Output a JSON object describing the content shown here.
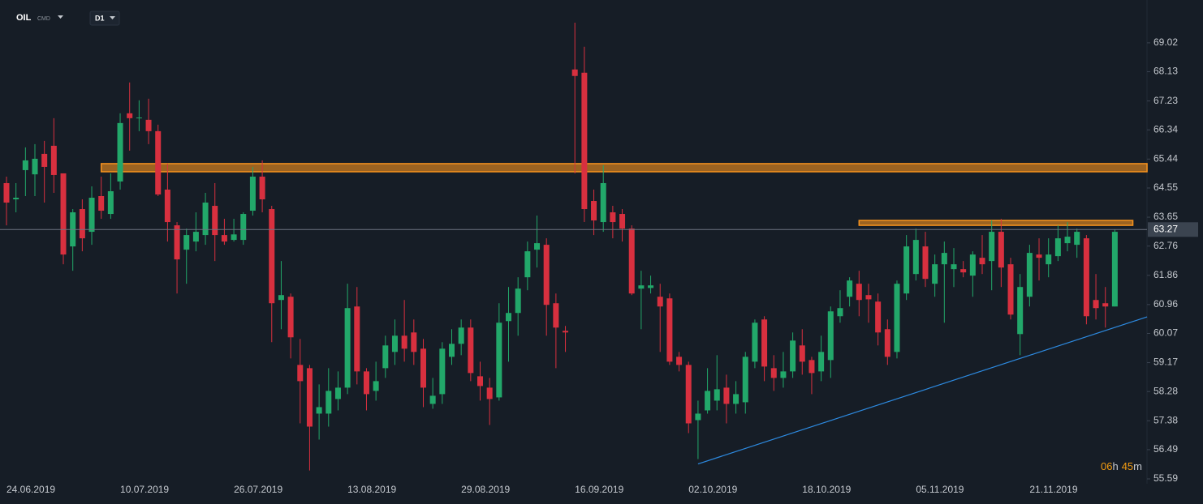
{
  "chart_data": {
    "type": "candlestick",
    "symbol": "OIL",
    "market": "CMD",
    "interval": "D1",
    "countdown_parts": [
      "06",
      "h",
      "45",
      "m"
    ],
    "current_price": 63.27,
    "up_color": "#22a86a",
    "down_color": "#d8303f",
    "ylim": [
      55.44,
      70.34
    ],
    "yticks": [
      55.59,
      56.49,
      57.38,
      58.28,
      59.17,
      60.07,
      60.96,
      61.86,
      62.76,
      63.65,
      64.55,
      65.44,
      66.34,
      67.23,
      68.13,
      69.02
    ],
    "categories": [
      "24.06.2019",
      null,
      null,
      null,
      null,
      null,
      null,
      null,
      null,
      null,
      null,
      null,
      "10.07.2019",
      null,
      null,
      null,
      null,
      null,
      null,
      null,
      null,
      null,
      null,
      null,
      "26.07.2019",
      null,
      null,
      null,
      null,
      null,
      null,
      null,
      null,
      null,
      null,
      null,
      "13.08.2019",
      null,
      null,
      null,
      null,
      null,
      null,
      null,
      null,
      null,
      null,
      null,
      "29.08.2019",
      null,
      null,
      null,
      null,
      null,
      null,
      null,
      null,
      null,
      null,
      null,
      "16.09.2019",
      null,
      null,
      null,
      null,
      null,
      null,
      null,
      null,
      null,
      null,
      null,
      "02.10.2019",
      null,
      null,
      null,
      null,
      null,
      null,
      null,
      null,
      null,
      null,
      null,
      "18.10.2019",
      null,
      null,
      null,
      null,
      null,
      null,
      null,
      null,
      null,
      null,
      null,
      "05.11.2019",
      null,
      null,
      null,
      null,
      null,
      null,
      null,
      null,
      null,
      null,
      null,
      "21.11.2019",
      null,
      null,
      null,
      null,
      null,
      null,
      null,
      null,
      null
    ],
    "open": [
      64.7,
      64.2,
      65.1,
      64.97,
      65.6,
      65.85,
      65.0,
      62.75,
      63.9,
      63.2,
      64.3,
      63.75,
      64.75,
      66.85,
      66.7,
      66.65,
      66.3,
      64.5,
      63.4,
      62.65,
      62.9,
      63.1,
      64.0,
      63.1,
      62.95,
      62.95,
      63.85,
      64.9,
      63.9,
      61.1,
      61.2,
      59.1,
      59.0,
      57.6,
      57.6,
      58.05,
      58.4,
      60.9,
      58.9,
      58.3,
      59.0,
      59.5,
      60.0,
      60.1,
      59.6,
      57.9,
      58.2,
      59.35,
      59.75,
      60.25,
      58.75,
      58.4,
      58.1,
      60.45,
      60.7,
      61.8,
      62.65,
      62.8,
      61.0,
      60.15,
      68.2,
      68.1,
      64.15,
      63.5,
      63.8,
      63.75,
      63.3,
      61.45,
      61.47,
      61.2,
      61.15,
      59.35,
      59.1,
      57.4,
      57.7,
      58.0,
      58.4,
      57.9,
      57.95,
      59.2,
      60.5,
      59.0,
      58.7,
      58.9,
      59.7,
      59.25,
      58.9,
      59.25,
      60.6,
      61.2,
      61.6,
      61.25,
      61.05,
      60.2,
      59.5,
      61.3,
      61.9,
      62.75,
      61.6,
      62.2,
      62.05,
      62.05,
      61.85,
      62.4,
      62.3,
      63.2,
      62.2,
      60.05,
      61.2,
      62.5,
      62.2,
      62.45,
      62.85,
      62.8,
      63.0,
      61.1,
      61.0,
      60.9
    ],
    "high": [
      64.9,
      64.7,
      65.8,
      65.9,
      66.0,
      66.7,
      65.0,
      63.9,
      64.2,
      64.6,
      64.9,
      65.0,
      66.85,
      67.8,
      67.25,
      67.3,
      66.5,
      65.3,
      63.5,
      63.3,
      63.8,
      64.4,
      64.7,
      63.6,
      63.6,
      63.8,
      65.2,
      65.4,
      64.0,
      62.3,
      61.3,
      59.9,
      59.1,
      58.5,
      59.0,
      58.9,
      61.6,
      61.5,
      59.0,
      59.2,
      60.0,
      60.5,
      61.1,
      60.5,
      59.9,
      58.7,
      59.8,
      60.2,
      60.5,
      60.5,
      59.2,
      58.7,
      61.0,
      61.5,
      61.8,
      62.9,
      63.7,
      63.0,
      61.3,
      60.3,
      69.64,
      68.9,
      64.5,
      65.25,
      64.0,
      63.9,
      63.4,
      62.0,
      61.85,
      61.6,
      61.3,
      59.5,
      59.2,
      58.0,
      59.0,
      59.4,
      58.8,
      58.6,
      59.5,
      60.5,
      60.6,
      59.4,
      59.5,
      60.1,
      60.2,
      59.35,
      60.0,
      60.9,
      61.4,
      61.8,
      62.0,
      61.6,
      61.3,
      60.5,
      61.7,
      63.1,
      63.3,
      63.2,
      62.5,
      62.9,
      62.7,
      62.3,
      62.6,
      63.1,
      63.55,
      63.6,
      62.4,
      61.9,
      62.8,
      63.0,
      63.0,
      63.4,
      63.5,
      63.3,
      63.1,
      61.9,
      61.5,
      63.27
    ],
    "low": [
      63.4,
      63.8,
      64.3,
      64.3,
      64.1,
      64.4,
      62.2,
      62.0,
      62.6,
      62.8,
      63.6,
      63.6,
      64.5,
      65.7,
      66.3,
      65.9,
      64.3,
      62.9,
      61.3,
      61.6,
      62.6,
      62.8,
      62.3,
      62.8,
      62.9,
      62.8,
      63.7,
      63.8,
      59.8,
      60.2,
      59.3,
      57.3,
      55.85,
      56.8,
      57.2,
      57.7,
      58.2,
      58.5,
      57.7,
      58.0,
      58.7,
      59.1,
      59.2,
      59.1,
      57.8,
      57.75,
      57.9,
      59.1,
      59.4,
      58.6,
      58.0,
      57.25,
      58.0,
      59.2,
      60.0,
      61.4,
      62.1,
      60.0,
      59.0,
      59.5,
      65.0,
      63.5,
      63.1,
      63.2,
      63.0,
      62.9,
      61.25,
      60.2,
      61.3,
      59.5,
      59.1,
      58.9,
      57.0,
      56.2,
      57.6,
      57.7,
      57.3,
      57.6,
      57.6,
      59.0,
      58.6,
      58.3,
      58.4,
      58.7,
      58.8,
      58.2,
      58.6,
      58.7,
      60.4,
      60.9,
      60.6,
      60.4,
      59.7,
      59.1,
      59.3,
      61.1,
      61.7,
      61.5,
      61.2,
      60.4,
      61.5,
      61.8,
      61.2,
      61.9,
      61.4,
      61.5,
      60.5,
      59.4,
      60.9,
      61.7,
      61.8,
      62.3,
      62.6,
      62.4,
      60.35,
      60.5,
      60.25,
      60.9
    ],
    "close": [
      64.1,
      64.25,
      65.4,
      65.45,
      65.2,
      64.95,
      62.5,
      63.8,
      63.0,
      64.25,
      63.85,
      64.45,
      66.55,
      66.7,
      66.72,
      66.3,
      64.35,
      63.5,
      62.35,
      63.1,
      63.2,
      64.1,
      63.1,
      62.9,
      63.12,
      63.75,
      64.9,
      64.2,
      61.0,
      61.25,
      59.95,
      58.6,
      57.2,
      57.8,
      58.3,
      58.4,
      60.85,
      58.9,
      58.2,
      58.6,
      59.7,
      60.0,
      59.6,
      59.5,
      58.4,
      58.15,
      59.6,
      59.75,
      60.25,
      58.85,
      58.45,
      58.05,
      60.4,
      60.7,
      61.45,
      62.6,
      62.85,
      60.95,
      60.25,
      60.1,
      68.0,
      63.9,
      63.55,
      64.7,
      63.5,
      63.3,
      61.3,
      61.55,
      61.55,
      60.9,
      59.2,
      59.1,
      57.3,
      57.6,
      58.3,
      58.35,
      57.9,
      58.2,
      59.35,
      60.4,
      59.05,
      58.7,
      58.9,
      59.85,
      59.2,
      58.85,
      59.5,
      60.75,
      60.85,
      61.7,
      61.1,
      61.12,
      60.1,
      59.35,
      61.6,
      62.75,
      62.95,
      61.75,
      62.2,
      62.55,
      62.2,
      61.95,
      62.5,
      62.2,
      63.2,
      62.1,
      60.65,
      61.5,
      62.55,
      62.4,
      62.5,
      63.0,
      63.05,
      63.2,
      60.6,
      60.85,
      60.9,
      63.2
    ],
    "zones": [
      {
        "low": 65.05,
        "high": 65.3,
        "start": 10,
        "end": 120.4,
        "color": "#f7931e"
      },
      {
        "low": 63.4,
        "high": 63.55,
        "start": 90,
        "end": 118.9,
        "color": "#f7931e"
      }
    ],
    "trendline": {
      "start": 73,
      "start_value": 56.05,
      "end": 120.4,
      "end_value": 60.58,
      "color": "#2d8ae0"
    }
  }
}
